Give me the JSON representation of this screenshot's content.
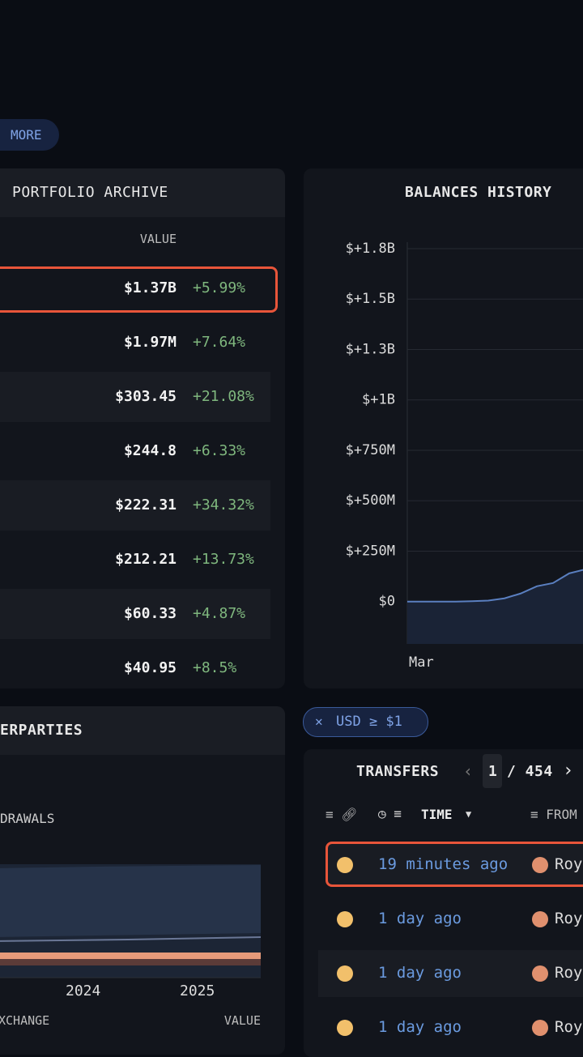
{
  "more_button": "MORE",
  "portfolio": {
    "title": "PORTFOLIO ARCHIVE",
    "value_header": "VALUE",
    "rows": [
      {
        "value": "$1.37B",
        "change": "+5.99%"
      },
      {
        "value": "$1.97M",
        "change": "+7.64%"
      },
      {
        "value": "$303.45",
        "change": "+21.08%"
      },
      {
        "value": "$244.8",
        "change": "+6.33%"
      },
      {
        "value": "$222.31",
        "change": "+34.32%"
      },
      {
        "value": "$212.21",
        "change": "+13.73%"
      },
      {
        "value": "$60.33",
        "change": "+4.87%"
      },
      {
        "value": "$40.95",
        "change": "+8.5%"
      }
    ]
  },
  "balances": {
    "title": "BALANCES HISTORY",
    "chart": {
      "type": "line",
      "color": "#5a7fc0",
      "categories": [
        "Mar",
        null,
        null,
        null,
        null,
        null,
        null,
        null,
        null,
        null,
        null,
        null
      ],
      "values": [
        0,
        0,
        0,
        0,
        2000000,
        5000000,
        16000000,
        40000000,
        76000000,
        92000000,
        140000000,
        160000000
      ],
      "ylim": [
        -210000000,
        1750000000
      ],
      "yticks": [
        {
          "value": 0,
          "label": "$0"
        },
        {
          "value": 250000000,
          "label": "$+250M"
        },
        {
          "value": 500000000,
          "label": "$+500M"
        },
        {
          "value": 750000000,
          "label": "$+750M"
        },
        {
          "value": 1000000000,
          "label": "$+1B"
        },
        {
          "value": 1250000000,
          "label": "$+1.3B"
        },
        {
          "value": 1500000000,
          "label": "$+1.5B"
        },
        {
          "value": 1750000000,
          "label": "$+1.8B"
        }
      ],
      "grid": true
    }
  },
  "counterparties": {
    "title": "ERPARTIES",
    "subtitle": "DRAWALS",
    "x_labels": [
      "2024",
      "2025"
    ],
    "columns": [
      "XCHANGE",
      "VALUE"
    ]
  },
  "filter": "USD ≥ $1",
  "transfers": {
    "title": "TRANSFERS",
    "page": "1",
    "pages": "/ 454",
    "columns": {
      "time": "TIME",
      "from": "FROM"
    },
    "rows": [
      {
        "time": "19 minutes ago",
        "from": "Roy"
      },
      {
        "time": "1 day ago",
        "from": "Roy"
      },
      {
        "time": "1 day ago",
        "from": "Roy"
      },
      {
        "time": "1 day ago",
        "from": "Roy"
      }
    ]
  }
}
